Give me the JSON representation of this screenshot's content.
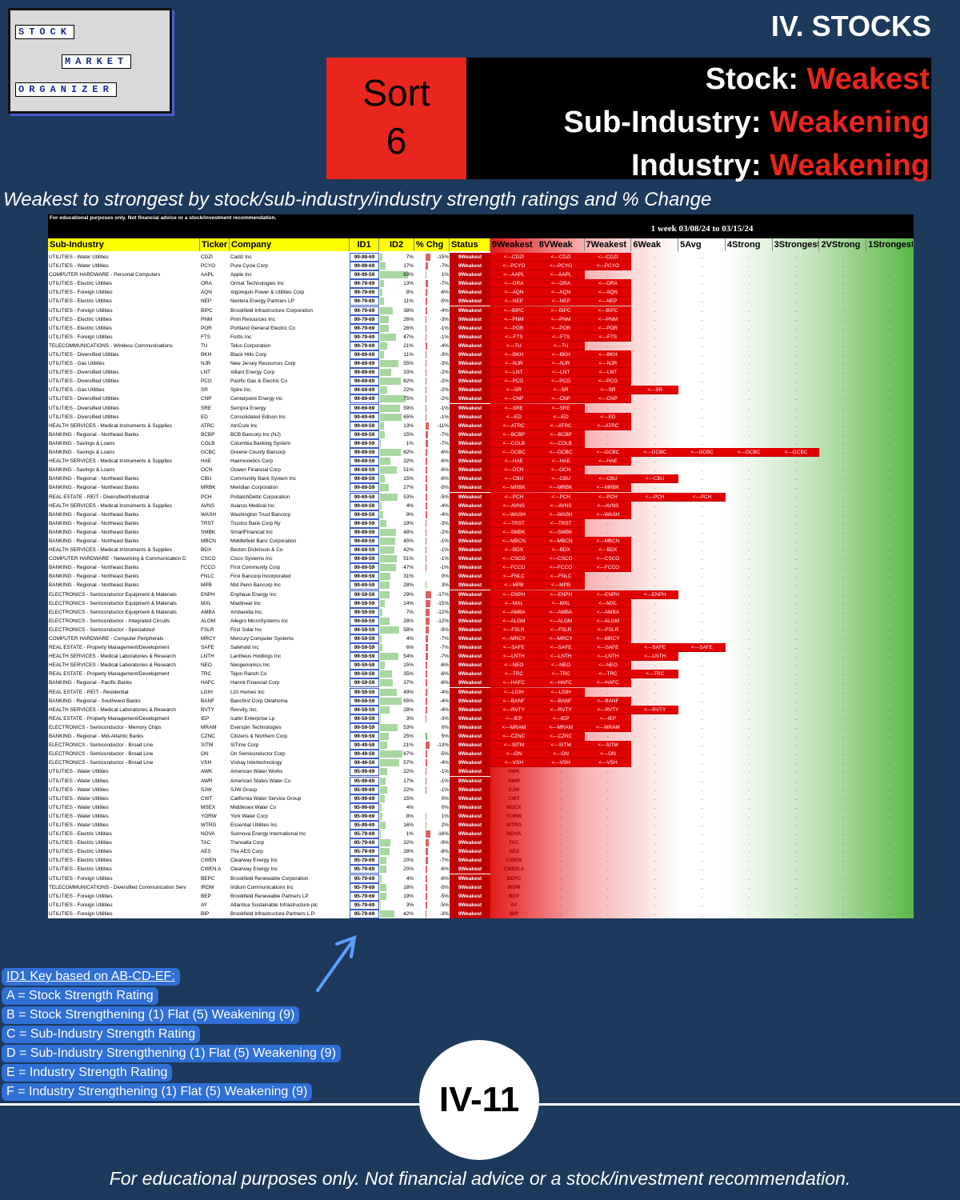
{
  "header": {
    "title": "IV. STOCKS",
    "sort_label": "Sort",
    "sort_number": "6",
    "criteria": [
      {
        "label": "Stock: ",
        "value": "Weakest"
      },
      {
        "label": "Sub-Industry: ",
        "value": "Weakening"
      },
      {
        "label": "Industry: ",
        "value": "Weakening"
      }
    ],
    "subtitle": "Weakest to strongest by stock/sub-industry/industry strength ratings and % Change"
  },
  "logo": {
    "words": [
      "STOCK",
      "MARKET",
      "ORGANIZER"
    ]
  },
  "table": {
    "disclaimer": "For educational purposes only. Not financial advice or a stock/investment recommendation.",
    "period": "1 week 03/08/24 to 03/15/24",
    "arrow": "<---",
    "empty": ".",
    "columns": [
      "Sub-Industry",
      "Ticker",
      "Company",
      "ID1",
      "ID2",
      "% Chg",
      "Status",
      "9Weakest",
      "8VWeak",
      "7Weakest",
      "6Weak",
      "5Avg",
      "4Strong",
      "3Strongest",
      "2VStrong",
      "1Strongest"
    ],
    "rows": [
      [
        "UTILITIES - Water Utilities",
        "CDZI",
        "Cadiz Inc",
        "99-99-69",
        "7%",
        "-15%",
        "9Weakest",
        3
      ],
      [
        "UTILITIES - Water Utilities",
        "PCYO",
        "Pure Cycle Corp",
        "99-99-69",
        "17%",
        "-7%",
        "9Weakest",
        3
      ],
      [
        "COMPUTER HARDWARE - Personal Computers",
        "AAPL",
        "Apple Inc",
        "99-99-59",
        "83%",
        "1%",
        "9Weakest",
        2
      ],
      [
        "UTILITIES - Electric Utilities",
        "ORA",
        "Ormat Technologies Inc",
        "99-79-69",
        "13%",
        "-7%",
        "9Weakest",
        3
      ],
      [
        "UTILITIES - Foreign Utilities",
        "AQN",
        "Algonquin Power & Utilities Corp",
        "99-79-69",
        "8%",
        "-6%",
        "9Weakest",
        3
      ],
      [
        "UTILITIES - Electric Utilities",
        "NEP",
        "Nextera Energy Partners LP",
        "99-79-69",
        "11%",
        "-5%",
        "9Weakest",
        3
      ],
      [
        "UTILITIES - Foreign Utilities",
        "BIPC",
        "Brookfield Infrastructure Corporation",
        "99-79-69",
        "38%",
        "-4%",
        "9Weakest",
        3
      ],
      [
        "UTILITIES - Electric Utilities",
        "PNM",
        "Pnm Resources Inc",
        "99-79-69",
        "26%",
        "-3%",
        "9Weakest",
        3
      ],
      [
        "UTILITIES - Electric Utilities",
        "POR",
        "Portland General Electric Co",
        "99-79-69",
        "26%",
        "-1%",
        "9Weakest",
        3
      ],
      [
        "UTILITIES - Foreign Utilities",
        "FTS",
        "Fortis Inc",
        "99-79-69",
        "47%",
        "-1%",
        "9Weakest",
        3
      ],
      [
        "TELECOMMUNICATIONS - Wireless Communications",
        "TU",
        "Telus Corporation",
        "99-79-69",
        "21%",
        "-4%",
        "9Weakest",
        2
      ],
      [
        "UTILITIES - Diversified Utilities",
        "BKH",
        "Black Hills Corp",
        "99-69-69",
        "11%",
        "-3%",
        "9Weakest",
        3
      ],
      [
        "UTILITIES - Gas Utilities",
        "NJR",
        "New Jersey Resources Corp",
        "99-69-69",
        "55%",
        "-3%",
        "9Weakest",
        3
      ],
      [
        "UTILITIES - Diversified Utilities",
        "LNT",
        "Alliant Energy Corp",
        "99-69-69",
        "33%",
        "-2%",
        "9Weakest",
        3
      ],
      [
        "UTILITIES - Diversified Utilities",
        "PCG",
        "Pacific Gas & Electric Co",
        "99-69-69",
        "62%",
        "-2%",
        "9Weakest",
        3
      ],
      [
        "UTILITIES - Gas Utilities",
        "SR",
        "Spire Inc.",
        "99-69-69",
        "22%",
        "-2%",
        "9Weakest",
        4
      ],
      [
        "UTILITIES - Diversified Utilities",
        "CNP",
        "Centerpoint Energy Inc",
        "99-69-69",
        "75%",
        "-2%",
        "9Weakest",
        3
      ],
      [
        "UTILITIES - Diversified Utilities",
        "SRE",
        "Sempra Energy",
        "99-69-69",
        "59%",
        "-1%",
        "9Weakest",
        2
      ],
      [
        "UTILITIES - Diversified Utilities",
        "ED",
        "Consolidated Edison Inc",
        "99-69-69",
        "65%",
        "-1%",
        "9Weakest",
        3
      ],
      [
        "HEALTH SERVICES - Medical Instruments & Supplies",
        "ATRC",
        "AtriCure Inc",
        "99-69-59",
        "13%",
        "-11%",
        "9Weakest",
        3
      ],
      [
        "BANKING - Regional - Northeast Banks",
        "BCBP",
        "BCB Bancorp Inc (NJ)",
        "99-69-59",
        "15%",
        "-7%",
        "9Weakest",
        2
      ],
      [
        "BANKING - Savings & Loans",
        "COLB",
        "Columbia Banking System",
        "99-69-59",
        "1%",
        "-7%",
        "9Weakest",
        2
      ],
      [
        "BANKING - Savings & Loans",
        "GCBC",
        "Greene County Bancorp",
        "99-69-59",
        "62%",
        "-6%",
        "9Weakest",
        7
      ],
      [
        "HEALTH SERVICES - Medical Instruments & Supplies",
        "HAE",
        "Haemonetics Corp",
        "99-69-59",
        "32%",
        "-6%",
        "9Weakest",
        3
      ],
      [
        "BANKING - Savings & Loans",
        "OCN",
        "Ocwen Financial Corp",
        "99-69-59",
        "51%",
        "-6%",
        "9Weakest",
        2
      ],
      [
        "BANKING - Regional - Northeast Banks",
        "CBU",
        "Community Bank System Inc",
        "99-69-59",
        "15%",
        "-6%",
        "9Weakest",
        4
      ],
      [
        "BANKING - Regional - Northeast Banks",
        "MRBK",
        "Meridian Corporation",
        "99-69-59",
        "27%",
        "-5%",
        "9Weakest",
        3
      ],
      [
        "REAL ESTATE - REIT - Diversified/Industrial",
        "PCH",
        "PotlatchDeltic Corporation",
        "99-69-59",
        "53%",
        "-5%",
        "9Weakest",
        5
      ],
      [
        "HEALTH SERVICES - Medical Instruments & Supplies",
        "AVNS",
        "Avanos Medical Inc",
        "99-69-59",
        "4%",
        "-4%",
        "9Weakest",
        3
      ],
      [
        "BANKING - Regional - Northeast Banks",
        "WASH",
        "Washington Trust Bancorp",
        "99-69-59",
        "9%",
        "-4%",
        "9Weakest",
        3
      ],
      [
        "BANKING - Regional - Northeast Banks",
        "TRST",
        "Trustco Bank Corp Ny",
        "99-69-59",
        "19%",
        "-3%",
        "9Weakest",
        2
      ],
      [
        "BANKING - Regional - Northeast Banks",
        "SMBK",
        "SmartFinancial Inc",
        "99-69-59",
        "48%",
        "-2%",
        "9Weakest",
        2
      ],
      [
        "BANKING - Regional - Northeast Banks",
        "MBCN",
        "Middlefield Banc Corporation",
        "99-69-59",
        "45%",
        "-1%",
        "9Weakest",
        3
      ],
      [
        "HEALTH SERVICES - Medical Instruments & Supplies",
        "BDX",
        "Becton Dickinson & Co",
        "99-69-59",
        "42%",
        "-1%",
        "9Weakest",
        3
      ],
      [
        "COMPUTER HARDWARE - Networking & Communication D",
        "CSCO",
        "Cisco Systems Inc",
        "99-69-59",
        "51%",
        "-1%",
        "9Weakest",
        3
      ],
      [
        "BANKING - Regional - Northeast Banks",
        "FCCO",
        "First Community Corp",
        "99-69-59",
        "47%",
        "-1%",
        "9Weakest",
        3
      ],
      [
        "BANKING - Regional - Northeast Banks",
        "FNLC",
        "First Bancorp Incorporated",
        "99-69-59",
        "31%",
        "0%",
        "9Weakest",
        2
      ],
      [
        "BANKING - Regional - Northeast Banks",
        "MPB",
        "Mid Penn Bancorp Inc",
        "99-69-59",
        "28%",
        "3%",
        "9Weakest",
        2
      ],
      [
        "ELECTRONICS - Semiconductor Equipment & Materials",
        "ENPH",
        "Enphase Energy Inc",
        "99-59-59",
        "29%",
        "-17%",
        "9Weakest",
        4
      ],
      [
        "ELECTRONICS - Semiconductor Equipment & Materials",
        "MXL",
        "Maxlinear Inc",
        "99-59-59",
        "14%",
        "-15%",
        "9Weakest",
        3
      ],
      [
        "ELECTRONICS - Semiconductor Equipment & Materials",
        "AMBA",
        "Ambarella Inc.",
        "99-59-59",
        "7%",
        "-12%",
        "9Weakest",
        3
      ],
      [
        "ELECTRONICS - Semiconductor - Integrated Circuits",
        "ALGM",
        "Allegro MicroSystems Inc",
        "99-59-59",
        "28%",
        "-12%",
        "9Weakest",
        3
      ],
      [
        "ELECTRONICS - Semiconductor - Specialized",
        "FSLR",
        "First Solar Inc",
        "99-59-59",
        "58%",
        "-9%",
        "9Weakest",
        3
      ],
      [
        "COMPUTER HARDWARE - Computer Peripherals",
        "MRCY",
        "Mercury Computer Systems",
        "99-59-59",
        "4%",
        "-7%",
        "9Weakest",
        3
      ],
      [
        "REAL ESTATE - Property Management/Development",
        "SAFE",
        "Safehold Inc",
        "99-59-59",
        "6%",
        "-7%",
        "9Weakest",
        5
      ],
      [
        "HEALTH SERVICES - Medical Laboratories & Research",
        "LNTH",
        "Lantheus Holdings Inc",
        "99-59-59",
        "54%",
        "-7%",
        "9Weakest",
        4
      ],
      [
        "HEALTH SERVICES - Medical Laboratories & Research",
        "NEO",
        "Neogenomics Inc",
        "99-59-59",
        "15%",
        "-6%",
        "9Weakest",
        3
      ],
      [
        "REAL ESTATE - Property Management/Development",
        "TRC",
        "Tejon Ranch Co",
        "99-59-59",
        "35%",
        "-6%",
        "9Weakest",
        4
      ],
      [
        "BANKING - Regional - Pacific Banks",
        "HAFC",
        "Hanmi Financial Corp",
        "99-59-59",
        "37%",
        "-6%",
        "9Weakest",
        3
      ],
      [
        "REAL ESTATE - REIT - Residential",
        "LGIH",
        "LGI Homes Inc",
        "99-59-59",
        "49%",
        "-4%",
        "9Weakest",
        2
      ],
      [
        "BANKING - Regional - Southwest Banks",
        "BANF",
        "Bancfirst Corp Oklahoma",
        "99-59-59",
        "65%",
        "-4%",
        "9Weakest",
        3
      ],
      [
        "HEALTH SERVICES - Medical Laboratories & Research",
        "RVTY",
        "Revvity, Inc.",
        "99-59-59",
        "28%",
        "-4%",
        "9Weakest",
        4
      ],
      [
        "REAL ESTATE - Property Management/Development",
        "IEP",
        "Icahn Enterprise Lp",
        "99-59-59",
        "3%",
        "-3%",
        "9Weakest",
        3
      ],
      [
        "ELECTRONICS - Semiconductor - Memory Chips",
        "MRAM",
        "Everspin Technologies",
        "99-59-59",
        "53%",
        "0%",
        "9Weakest",
        3
      ],
      [
        "BANKING - Regional - Mid-Atlantic Banks",
        "CZNC",
        "Citizens & Northern Corp",
        "99-59-59",
        "25%",
        "5%",
        "9Weakest",
        2
      ],
      [
        "ELECTRONICS - Semiconductor - Broad Line",
        "SITM",
        "SiTime Corp",
        "99-49-59",
        "21%",
        "-13%",
        "9Weakest",
        3
      ],
      [
        "ELECTRONICS - Semiconductor - Broad Line",
        "ON",
        "On Semiconductor Corp",
        "99-49-59",
        "67%",
        "-5%",
        "9Weakest",
        3
      ],
      [
        "ELECTRONICS - Semiconductor - Broad Line",
        "VSH",
        "Vishay Intertechnology",
        "99-49-59",
        "57%",
        "-4%",
        "9Weakest",
        3
      ],
      [
        "UTILITIES - Water Utilities",
        "AWK",
        "American Water Works",
        "95-99-69",
        "22%",
        "-1%",
        "9Weakest",
        0
      ],
      [
        "UTILITIES - Water Utilities",
        "AWR",
        "American States Water Co",
        "95-99-69",
        "17%",
        "-1%",
        "9Weakest",
        0
      ],
      [
        "UTILITIES - Water Utilities",
        "SJW",
        "SJW Group",
        "95-99-69",
        "22%",
        "-1%",
        "9Weakest",
        0
      ],
      [
        "UTILITIES - Water Utilities",
        "CWT",
        "California Water Service Group",
        "95-99-69",
        "15%",
        "0%",
        "9Weakest",
        0
      ],
      [
        "UTILITIES - Water Utilities",
        "MSEX",
        "Middlesex Water Co",
        "95-99-69",
        "4%",
        "0%",
        "9Weakest",
        0
      ],
      [
        "UTILITIES - Water Utilities",
        "YORW",
        "York Water Corp",
        "95-99-69",
        "8%",
        "1%",
        "9Weakest",
        0
      ],
      [
        "UTILITIES - Water Utilities",
        "WTRG",
        "Essential Utilities Inc",
        "95-99-69",
        "16%",
        "2%",
        "9Weakest",
        0
      ],
      [
        "UTILITIES - Electric Utilities",
        "NOVA",
        "Sunnova Energy International Inc",
        "95-79-69",
        "1%",
        "-16%",
        "9Weakest",
        0
      ],
      [
        "UTILITIES - Electric Utilities",
        "TAC",
        "Transalta Corp",
        "95-79-69",
        "32%",
        "-9%",
        "9Weakest",
        0
      ],
      [
        "UTILITIES - Electric Utilities",
        "AES",
        "The AES Corp",
        "95-79-69",
        "28%",
        "-8%",
        "9Weakest",
        0
      ],
      [
        "UTILITIES - Electric Utilities",
        "CWEN",
        "Clearway Energy Inc",
        "95-79-69",
        "20%",
        "-7%",
        "9Weakest",
        0
      ],
      [
        "UTILITIES - Electric Utilities",
        "CWEN.A",
        "Clearway Energy Inc",
        "95-79-69",
        "20%",
        "-6%",
        "9Weakest",
        0
      ],
      [
        "UTILITIES - Foreign Utilities",
        "BEPC",
        "Brookfield Renewable Corporation",
        "95-79-69",
        "4%",
        "-6%",
        "9Weakest",
        0
      ],
      [
        "TELECOMMUNICATIONS - Diversified Communication Serv",
        "IRDM",
        "Iridium Communications Inc",
        "95-79-69",
        "18%",
        "-5%",
        "9Weakest",
        0
      ],
      [
        "UTILITIES - Foreign Utilities",
        "BEP",
        "Brookfield Renewable Partners LP",
        "95-79-69",
        "19%",
        "-5%",
        "9Weakest",
        0
      ],
      [
        "UTILITIES - Foreign Utilities",
        "AY",
        "Atlantica Sustainable Infrastructure plc",
        "95-79-69",
        "3%",
        "-5%",
        "9Weakest",
        0
      ],
      [
        "UTILITIES - Foreign Utilities",
        "BIP",
        "Brookfield Infrastructure Partners L.P.",
        "95-79-69",
        "42%",
        "-3%",
        "9Weakest",
        0
      ]
    ]
  },
  "key": {
    "heading": "ID1 Key based on AB-CD-EF:",
    "lines": [
      "A = Stock Strength Rating",
      "B = Stock Strengthening (1) Flat (5) Weakening (9)",
      "C = Sub-Industry Strength Rating",
      "D = Sub-Industry Strengthening (1) Flat (5) Weakening (9)",
      "E = Industry Strength Rating",
      "F = Industry Strengthening (1) Flat (5) Weakening (9)"
    ]
  },
  "page_number": "IV-11",
  "footer": "For educational purposes only. Not financial advice or a stock/investment recommendation."
}
